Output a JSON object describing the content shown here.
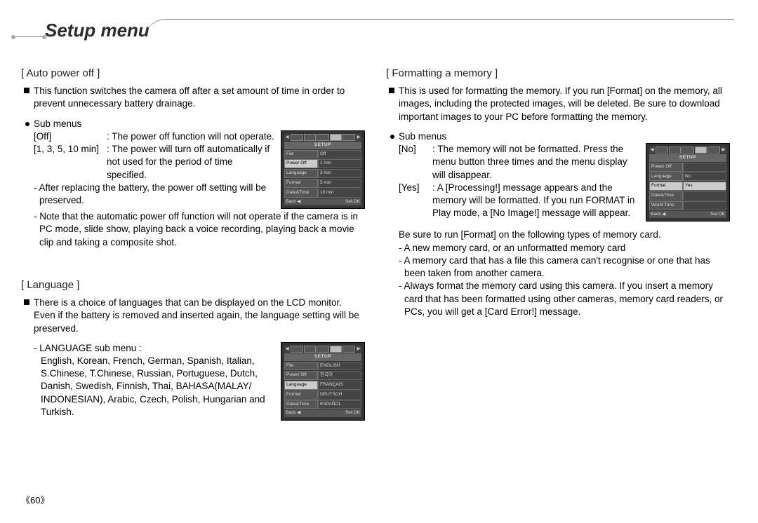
{
  "page": {
    "title": "Setup menu",
    "number": "《60》"
  },
  "colors": {
    "text": "#000000",
    "titleText": "#2a2a2a",
    "lcdBg": "#333333",
    "lcdRowBg": "#555555",
    "lcdSel": "#cccccc"
  },
  "auto_power_off": {
    "heading": "[ Auto power off ]",
    "intro": "This function switches the camera off after a set amount of time in order to prevent unnecessary battery drainage.",
    "sub_label": "Sub menus",
    "opt1_key": "[Off]",
    "opt1_val": ": The power off function will not operate.",
    "opt2_key": "[1, 3, 5, 10 min]",
    "opt2_val": ": The power will turn off automatically if not used for the period of time specified.",
    "note1": "- After replacing the battery, the power off setting will be preserved.",
    "note2": "- Note that the automatic power off function will not operate if the camera is in PC mode, slide show, playing back a voice recording, playing back a movie clip and taking a composite shot.",
    "lcd": {
      "title": "SETUP",
      "rows": [
        {
          "k": "File",
          "v": "Off"
        },
        {
          "k": "Power Off",
          "v": "1 min"
        },
        {
          "k": "Language",
          "v": "3 min"
        },
        {
          "k": "Format",
          "v": "5 min"
        },
        {
          "k": "Date&Time",
          "v": "10 min"
        }
      ],
      "foot_l": "Back ◀",
      "foot_r": "Set:OK",
      "selected": 1
    }
  },
  "language": {
    "heading": "[ Language ]",
    "intro": "There is a choice of languages that can be displayed on the LCD monitor. Even if the battery is removed and inserted again, the language setting will be preserved.",
    "sub_label": "- LANGUAGE sub menu :",
    "sub_body": "English, Korean, French, German, Spanish, Italian, S.Chinese, T.Chinese, Russian, Portuguese, Dutch, Danish, Swedish, Finnish, Thai, BAHASA(MALAY/ INDONESIAN), Arabic, Czech, Polish, Hungarian and Turkish.",
    "lcd": {
      "title": "SETUP",
      "rows": [
        {
          "k": "File",
          "v": "ENGLISH"
        },
        {
          "k": "Power Off",
          "v": "한국어"
        },
        {
          "k": "Language",
          "v": "FRANÇAIS"
        },
        {
          "k": "Format",
          "v": "DEUTSCH"
        },
        {
          "k": "Date&Time",
          "v": "ESPAÑOL"
        }
      ],
      "foot_l": "Back ◀",
      "foot_r": "Set:OK",
      "selected": 2
    }
  },
  "formatting": {
    "heading": "[ Formatting a memory ]",
    "intro": "This is used for formatting the memory. If you run [Format] on the memory, all images, including the protected images, will be deleted. Be sure to download important images to your PC before formatting the memory.",
    "sub_label": "Sub menus",
    "opt1_key": "[No]",
    "opt1_val": ": The memory will not be formatted. Press the menu button three times and the menu display will disappear.",
    "opt2_key": "[Yes]",
    "opt2_val": ": A [Processing!] message appears and the memory will be formatted. If you run FORMAT in Play mode, a [No Image!] message will appear.",
    "note_intro": "Be sure to run [Format] on the following types of memory card.",
    "note1": "- A new memory card, or an unformatted memory card",
    "note2": "- A memory card that has a file this camera can't recognise or one that has been taken from another camera.",
    "note3": "- Always format the memory card using this camera. If you insert a memory card that has been formatted using other cameras, memory card readers, or PCs, you will get a [Card Error!] message.",
    "lcd": {
      "title": "SETUP",
      "rows": [
        {
          "k": "Power Off",
          "v": ""
        },
        {
          "k": "Language",
          "v": "No"
        },
        {
          "k": "Format",
          "v": "Yes"
        },
        {
          "k": "Date&Time",
          "v": ""
        },
        {
          "k": "World Time",
          "v": ""
        }
      ],
      "foot_l": "Back ◀",
      "foot_r": "Set:OK",
      "selected": 2,
      "selected_val": 2
    }
  }
}
